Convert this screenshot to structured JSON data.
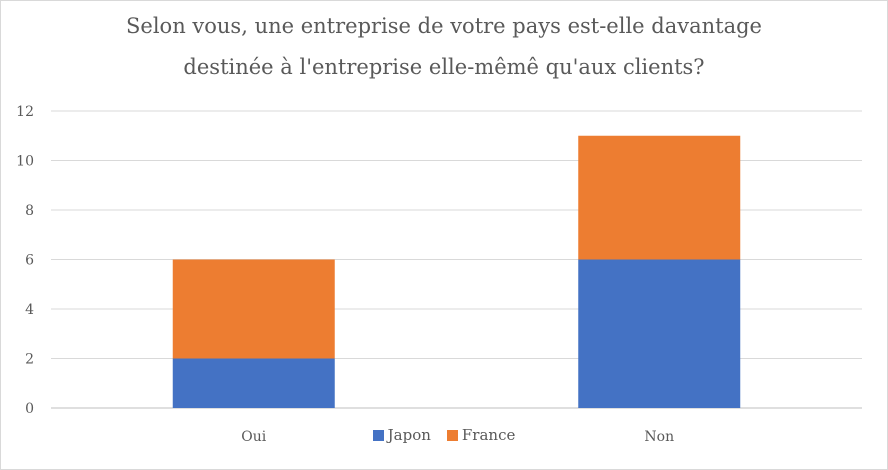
{
  "chart_data": {
    "type": "bar",
    "stacked": true,
    "title_lines": [
      "Selon vous, une entreprise de votre pays est-elle davantage",
      "destinée à l'entreprise elle-mêmê qu'aux clients?"
    ],
    "categories": [
      "Oui",
      "Non"
    ],
    "series": [
      {
        "name": "Japon",
        "values": [
          2,
          6
        ],
        "color": "#4472c4"
      },
      {
        "name": "France",
        "values": [
          4,
          5
        ],
        "color": "#ed7d31"
      }
    ],
    "xlabel": "",
    "ylabel": "",
    "ylim": [
      0,
      12
    ],
    "yticks": [
      0,
      2,
      4,
      6,
      8,
      10,
      12
    ],
    "grid": true,
    "legend_position": "bottom"
  }
}
